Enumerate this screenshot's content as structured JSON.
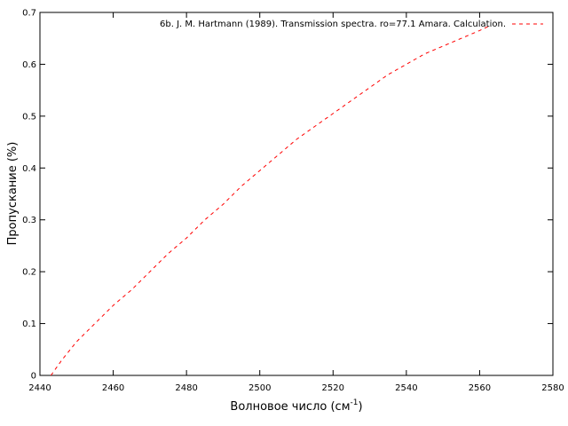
{
  "chart_data": {
    "type": "line",
    "title": "",
    "xlabel": "Волновое число (см",
    "xlabel_sup": "-1",
    "xlabel_tail": ")",
    "ylabel": "Пропускание (%)",
    "xlim": [
      2440,
      2580
    ],
    "ylim": [
      0,
      0.7
    ],
    "xticks": [
      2440,
      2460,
      2480,
      2500,
      2520,
      2540,
      2560,
      2580
    ],
    "yticks": [
      0,
      0.1,
      0.2,
      0.3,
      0.4,
      0.5,
      0.6,
      0.7
    ],
    "grid": false,
    "legend_position": "top-right",
    "series": [
      {
        "name": "6b. J. M. Hartmann (1989). Transmission spectra. ro=77.1 Amara. Calculation.",
        "color": "#ff0000",
        "style": "dashed",
        "x": [
          2443,
          2446,
          2450,
          2455,
          2460,
          2465,
          2470,
          2475,
          2480,
          2485,
          2490,
          2495,
          2500,
          2505,
          2510,
          2515,
          2520,
          2525,
          2530,
          2535,
          2540,
          2545,
          2550,
          2555,
          2560,
          2563
        ],
        "y": [
          0.0,
          0.03,
          0.065,
          0.1,
          0.135,
          0.165,
          0.2,
          0.235,
          0.265,
          0.3,
          0.33,
          0.365,
          0.395,
          0.425,
          0.455,
          0.48,
          0.505,
          0.53,
          0.555,
          0.58,
          0.6,
          0.62,
          0.635,
          0.65,
          0.665,
          0.675
        ]
      }
    ]
  }
}
